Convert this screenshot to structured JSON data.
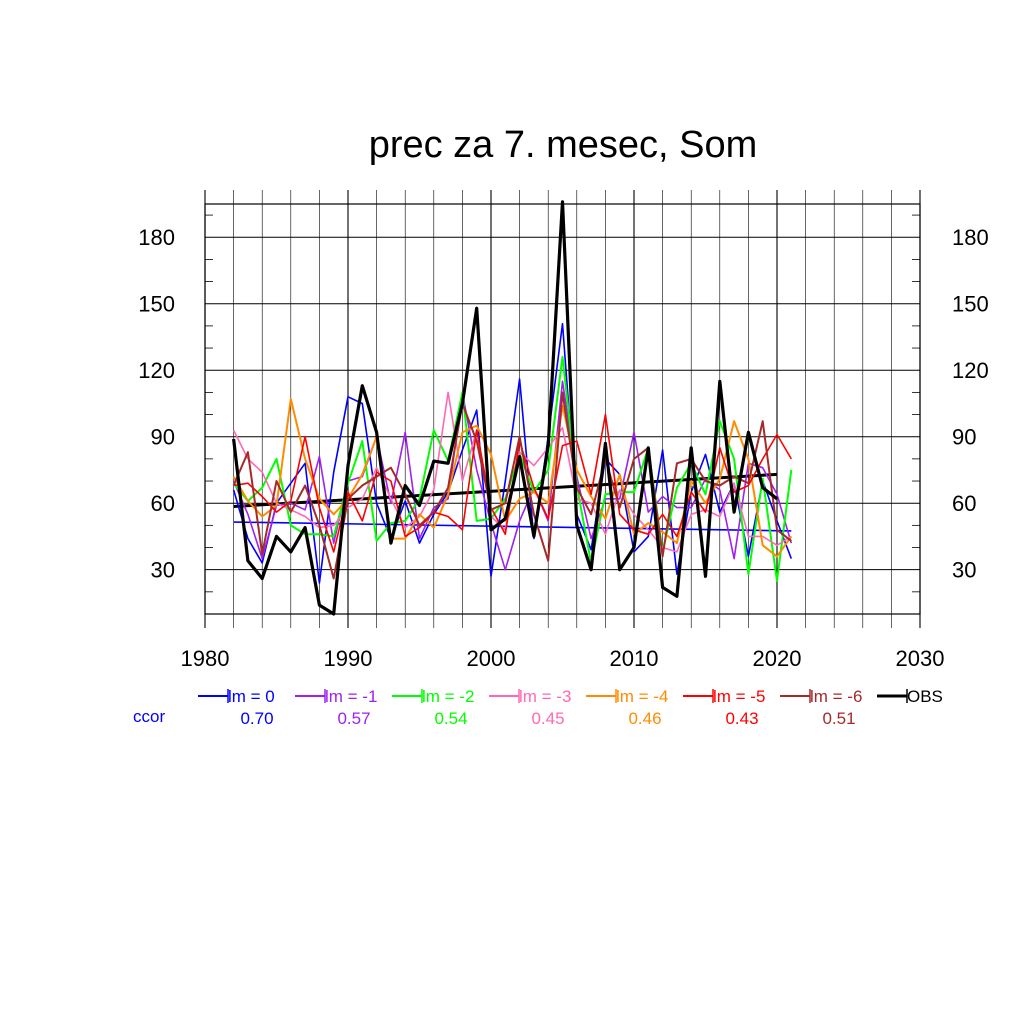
{
  "chart_data": {
    "type": "line",
    "title": "prec za 7. mesec, Som",
    "xlim": [
      1980,
      2030
    ],
    "ylim": [
      10,
      195
    ],
    "x_ticks": [
      1980,
      1990,
      2000,
      2010,
      2020,
      2030
    ],
    "y_ticks": [
      30,
      60,
      90,
      120,
      150,
      180
    ],
    "grid": true,
    "years": [
      1982,
      1983,
      1984,
      1985,
      1986,
      1987,
      1988,
      1989,
      1990,
      1991,
      1992,
      1993,
      1994,
      1995,
      1996,
      1997,
      1998,
      1999,
      2000,
      2001,
      2002,
      2003,
      2004,
      2005,
      2006,
      2007,
      2008,
      2009,
      2010,
      2011,
      2012,
      2013,
      2014,
      2015,
      2016,
      2017,
      2018,
      2019,
      2020,
      2021
    ],
    "series": [
      {
        "name": "lm = 0",
        "color": "#0000ff",
        "width": 1.6,
        "values": [
          66,
          44,
          33,
          60,
          69,
          78,
          24,
          74,
          108,
          105,
          60,
          44,
          61,
          42,
          55,
          65,
          84,
          102,
          27,
          70,
          116,
          44,
          90,
          141,
          55,
          39,
          80,
          73,
          38,
          45,
          84,
          28,
          65,
          82,
          56,
          69,
          36,
          70,
          52,
          35
        ]
      },
      {
        "name": "lm = -1",
        "color": "#a020f0",
        "width": 1.6,
        "values": [
          70,
          55,
          35,
          59,
          60,
          57,
          81,
          42,
          70,
          72,
          90,
          60,
          92,
          44,
          58,
          62,
          110,
          75,
          51,
          30,
          52,
          67,
          52,
          115,
          72,
          44,
          62,
          62,
          92,
          56,
          63,
          58,
          58,
          71,
          66,
          35,
          78,
          76,
          64,
          42
        ]
      },
      {
        "name": "lm = -2",
        "color": "#00ff00",
        "width": 2.0,
        "values": [
          69,
          61,
          67,
          80,
          50,
          46,
          46,
          45,
          69,
          88,
          43,
          51,
          52,
          62,
          93,
          79,
          110,
          52,
          53,
          62,
          82,
          65,
          75,
          126,
          68,
          33,
          64,
          65,
          65,
          85,
          38,
          67,
          78,
          64,
          97,
          80,
          28,
          71,
          25,
          75
        ]
      },
      {
        "name": "lm = -3",
        "color": "#ff69b4",
        "width": 1.6,
        "values": [
          93,
          80,
          74,
          60,
          57,
          54,
          49,
          50,
          58,
          62,
          76,
          62,
          49,
          54,
          66,
          110,
          70,
          93,
          54,
          48,
          83,
          77,
          85,
          94,
          62,
          60,
          46,
          66,
          55,
          48,
          40,
          38,
          55,
          57,
          54,
          69,
          45,
          45,
          41,
          45
        ]
      },
      {
        "name": "lm = -4",
        "color": "#ff8c00",
        "width": 2.0,
        "values": [
          72,
          61,
          54,
          59,
          107,
          80,
          62,
          55,
          62,
          73,
          90,
          44,
          44,
          55,
          49,
          64,
          92,
          95,
          82,
          52,
          62,
          65,
          60,
          104,
          75,
          63,
          53,
          73,
          46,
          51,
          47,
          42,
          70,
          60,
          71,
          97,
          80,
          41,
          36,
          45
        ]
      },
      {
        "name": "lm = -5",
        "color": "#ff0000",
        "width": 1.6,
        "values": [
          68,
          69,
          63,
          56,
          61,
          90,
          58,
          38,
          65,
          52,
          74,
          70,
          45,
          49,
          56,
          54,
          48,
          93,
          58,
          46,
          88,
          67,
          53,
          86,
          88,
          64,
          100,
          55,
          48,
          46,
          55,
          45,
          65,
          56,
          85,
          65,
          68,
          80,
          91,
          80
        ]
      },
      {
        "name": "lm = -6",
        "color": "#a52a2a",
        "width": 2.0,
        "values": [
          68,
          83,
          37,
          70,
          56,
          68,
          50,
          26,
          62,
          68,
          72,
          76,
          64,
          50,
          56,
          67,
          105,
          88,
          57,
          60,
          90,
          55,
          34,
          110,
          67,
          55,
          80,
          58,
          80,
          85,
          36,
          78,
          80,
          70,
          68,
          72,
          69,
          97,
          48,
          43
        ]
      },
      {
        "name": "OBS",
        "color": "#000000",
        "width": 3.2,
        "values": [
          89,
          34,
          26,
          45,
          38,
          49,
          14,
          10,
          77,
          113,
          92,
          42,
          68,
          59,
          79,
          78,
          105,
          148,
          48,
          53,
          81,
          45,
          86,
          196,
          50,
          30,
          87,
          30,
          40,
          85,
          22,
          18,
          85,
          27,
          115,
          56,
          92,
          67,
          62,
          null
        ]
      }
    ],
    "trend_lines": [
      {
        "name": "lm = 0",
        "color": "#0000ff",
        "x": [
          1982,
          2021
        ],
        "y": [
          51.5,
          47.5
        ],
        "width": 1.6
      },
      {
        "name": "OBS",
        "color": "#000000",
        "x": [
          1982,
          2020
        ],
        "y": [
          58.5,
          73
        ],
        "width": 3.0
      }
    ],
    "legend_position": "bottom",
    "ccor_label": "ccor",
    "ccor_color": "#0000ff",
    "ccor_values": [
      "0.70",
      "0.57",
      "0.54",
      "0.45",
      "0.46",
      "0.43",
      "0.51"
    ]
  }
}
